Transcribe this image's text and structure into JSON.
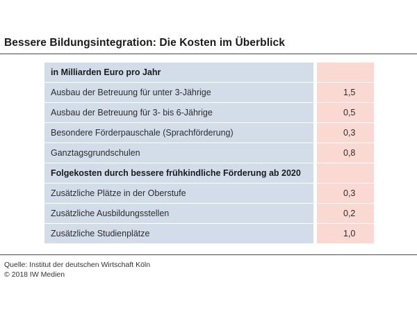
{
  "title": "Bessere Bildungsintegration: Die Kosten im Überblick",
  "chart_data": {
    "type": "table",
    "unit_header": "in Milliarden Euro pro Jahr",
    "rows": [
      {
        "label": "in Milliarden Euro pro Jahr",
        "value": "",
        "kind": "head"
      },
      {
        "label": "Ausbau der Betreuung für unter 3-Jährige",
        "value": "1,5",
        "kind": "sub"
      },
      {
        "label": "Ausbau der Betreuung für 3- bis 6-Jährige",
        "value": "0,5",
        "kind": "sub"
      },
      {
        "label": "Besondere Förderpauschale (Sprachförderung)",
        "value": "0,3",
        "kind": "sub"
      },
      {
        "label": "Ganztagsgrundschulen",
        "value": "0,8",
        "kind": "sub"
      },
      {
        "label": "Folgekosten durch bessere frühkindliche Förderung ab 2020",
        "value": "",
        "kind": "head"
      },
      {
        "label": "Zusätzliche Plätze in der Oberstufe",
        "value": "0,3",
        "kind": "sub"
      },
      {
        "label": "Zusätzliche Ausbildungsstellen",
        "value": "0,2",
        "kind": "sub"
      },
      {
        "label": "Zusätzliche Studienplätze",
        "value": "1,0",
        "kind": "sub"
      }
    ]
  },
  "source": {
    "line1": "Quelle: Institut der deutschen Wirtschaft Köln",
    "line2": "© 2018 IW Medien"
  },
  "colors": {
    "label_bg": "#d3dde9",
    "value_bg": "#fbd9d3"
  }
}
